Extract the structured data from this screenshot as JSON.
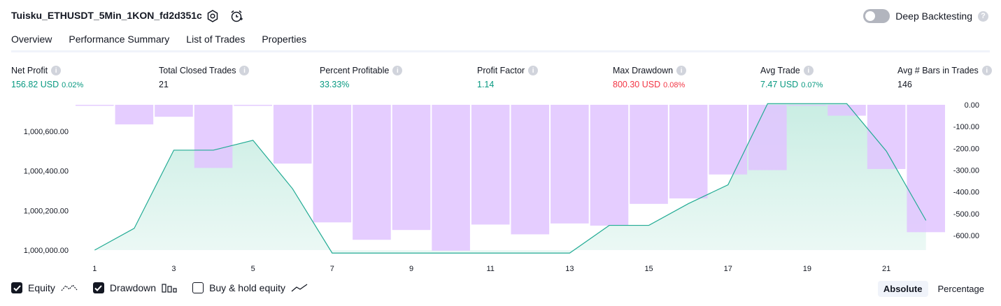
{
  "header": {
    "title": "Tuisku_ETHUSDT_5Min_1KON_fd2d351c",
    "deep_backtesting_label": "Deep Backtesting"
  },
  "tabs": [
    {
      "label": "Overview",
      "active": true
    },
    {
      "label": "Performance Summary",
      "active": false
    },
    {
      "label": "List of Trades",
      "active": false
    },
    {
      "label": "Properties",
      "active": false
    }
  ],
  "metrics": [
    {
      "label": "Net Profit",
      "value": "156.82 USD",
      "pct": "0.02%",
      "color": "#089981"
    },
    {
      "label": "Total Closed Trades",
      "value": "21",
      "pct": "",
      "color": "#131722"
    },
    {
      "label": "Percent Profitable",
      "value": "33.33%",
      "pct": "",
      "color": "#089981"
    },
    {
      "label": "Profit Factor",
      "value": "1.14",
      "pct": "",
      "color": "#089981"
    },
    {
      "label": "Max Drawdown",
      "value": "800.30 USD",
      "pct": "0.08%",
      "color": "#f23645"
    },
    {
      "label": "Avg Trade",
      "value": "7.47 USD",
      "pct": "0.07%",
      "color": "#089981"
    },
    {
      "label": "Avg # Bars in Trades",
      "value": "146",
      "pct": "",
      "color": "#131722"
    }
  ],
  "chart_data": {
    "type": "bar",
    "x": [
      1,
      2,
      3,
      4,
      5,
      6,
      7,
      8,
      9,
      10,
      11,
      12,
      13,
      14,
      15,
      16,
      17,
      18,
      19,
      20,
      21,
      22
    ],
    "x_ticks": [
      "1",
      "3",
      "5",
      "7",
      "9",
      "11",
      "13",
      "15",
      "17",
      "19",
      "21"
    ],
    "equity": {
      "name": "Equity",
      "values": [
        1000000,
        1000110,
        1000505,
        1000505,
        1000555,
        1000310,
        999985,
        999985,
        999985,
        999985,
        999985,
        999985,
        999985,
        1000125,
        1000125,
        1000235,
        1000330,
        1000740,
        1000740,
        1000740,
        1000500,
        1000150
      ],
      "y_ticks": [
        "1,000,000.00",
        "1,000,200.00",
        "1,000,400.00",
        "1,000,600.00"
      ],
      "y_tick_values": [
        1000000,
        1000200,
        1000400,
        1000600
      ]
    },
    "drawdown": {
      "name": "Drawdown",
      "values": [
        -2,
        -90,
        -55,
        -290,
        -5,
        -270,
        -540,
        -620,
        -575,
        -670,
        -550,
        -595,
        -545,
        -555,
        -455,
        -430,
        -320,
        -300,
        0,
        -50,
        -295,
        -585
      ],
      "y_ticks": [
        "0.00",
        "-100.00",
        "-200.00",
        "-300.00",
        "-400.00",
        "-500.00",
        "-600.00"
      ],
      "y_tick_values": [
        0,
        -100,
        -200,
        -300,
        -400,
        -500,
        -600
      ]
    },
    "colors": {
      "equity_line": "#22ab94",
      "equity_fill": "#c9ede3",
      "drawdown_bar": "#e1c4ff"
    }
  },
  "legend": {
    "equity_label": "Equity",
    "drawdown_label": "Drawdown",
    "buyhold_label": "Buy & hold equity"
  },
  "mode": {
    "absolute": "Absolute",
    "percentage": "Percentage"
  }
}
